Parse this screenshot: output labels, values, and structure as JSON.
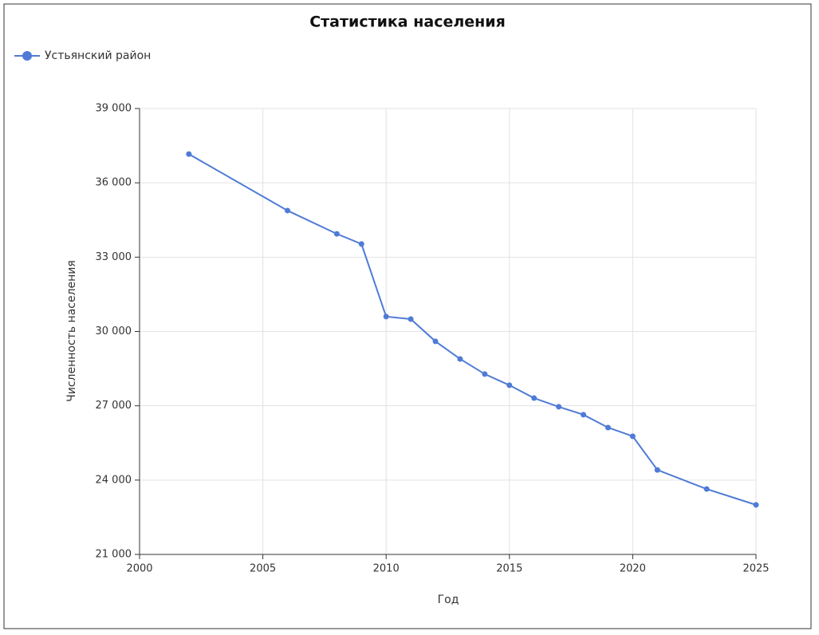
{
  "chart_data": {
    "type": "line",
    "title": "Статистика населения",
    "x_label": "Год",
    "y_label": "Численность населения",
    "x": [
      2002,
      2006,
      2008,
      2009,
      2010,
      2011,
      2012,
      2013,
      2014,
      2015,
      2016,
      2017,
      2018,
      2019,
      2020,
      2021,
      2023,
      2025
    ],
    "series": [
      {
        "name": "Устьянский район",
        "color": "#4f7bd6",
        "values": [
          37160,
          34880,
          33940,
          33530,
          30600,
          30500,
          29600,
          28890,
          28280,
          27830,
          27310,
          26960,
          26640,
          26120,
          25770,
          24410,
          23640,
          23000
        ]
      }
    ],
    "xlim": [
      2000,
      2025
    ],
    "xticks": [
      2000,
      2005,
      2010,
      2015,
      2020,
      2025
    ],
    "ylim": [
      21000,
      39000
    ],
    "yticks": [
      {
        "value": 21000,
        "label": "21 000"
      },
      {
        "value": 24000,
        "label": "24 000"
      },
      {
        "value": 27000,
        "label": "27 000"
      },
      {
        "value": 30000,
        "label": "30 000"
      },
      {
        "value": 33000,
        "label": "33 000"
      },
      {
        "value": 36000,
        "label": "36 000"
      },
      {
        "value": 39000,
        "label": "39 000"
      }
    ],
    "grid": true,
    "legend": "top-left"
  }
}
